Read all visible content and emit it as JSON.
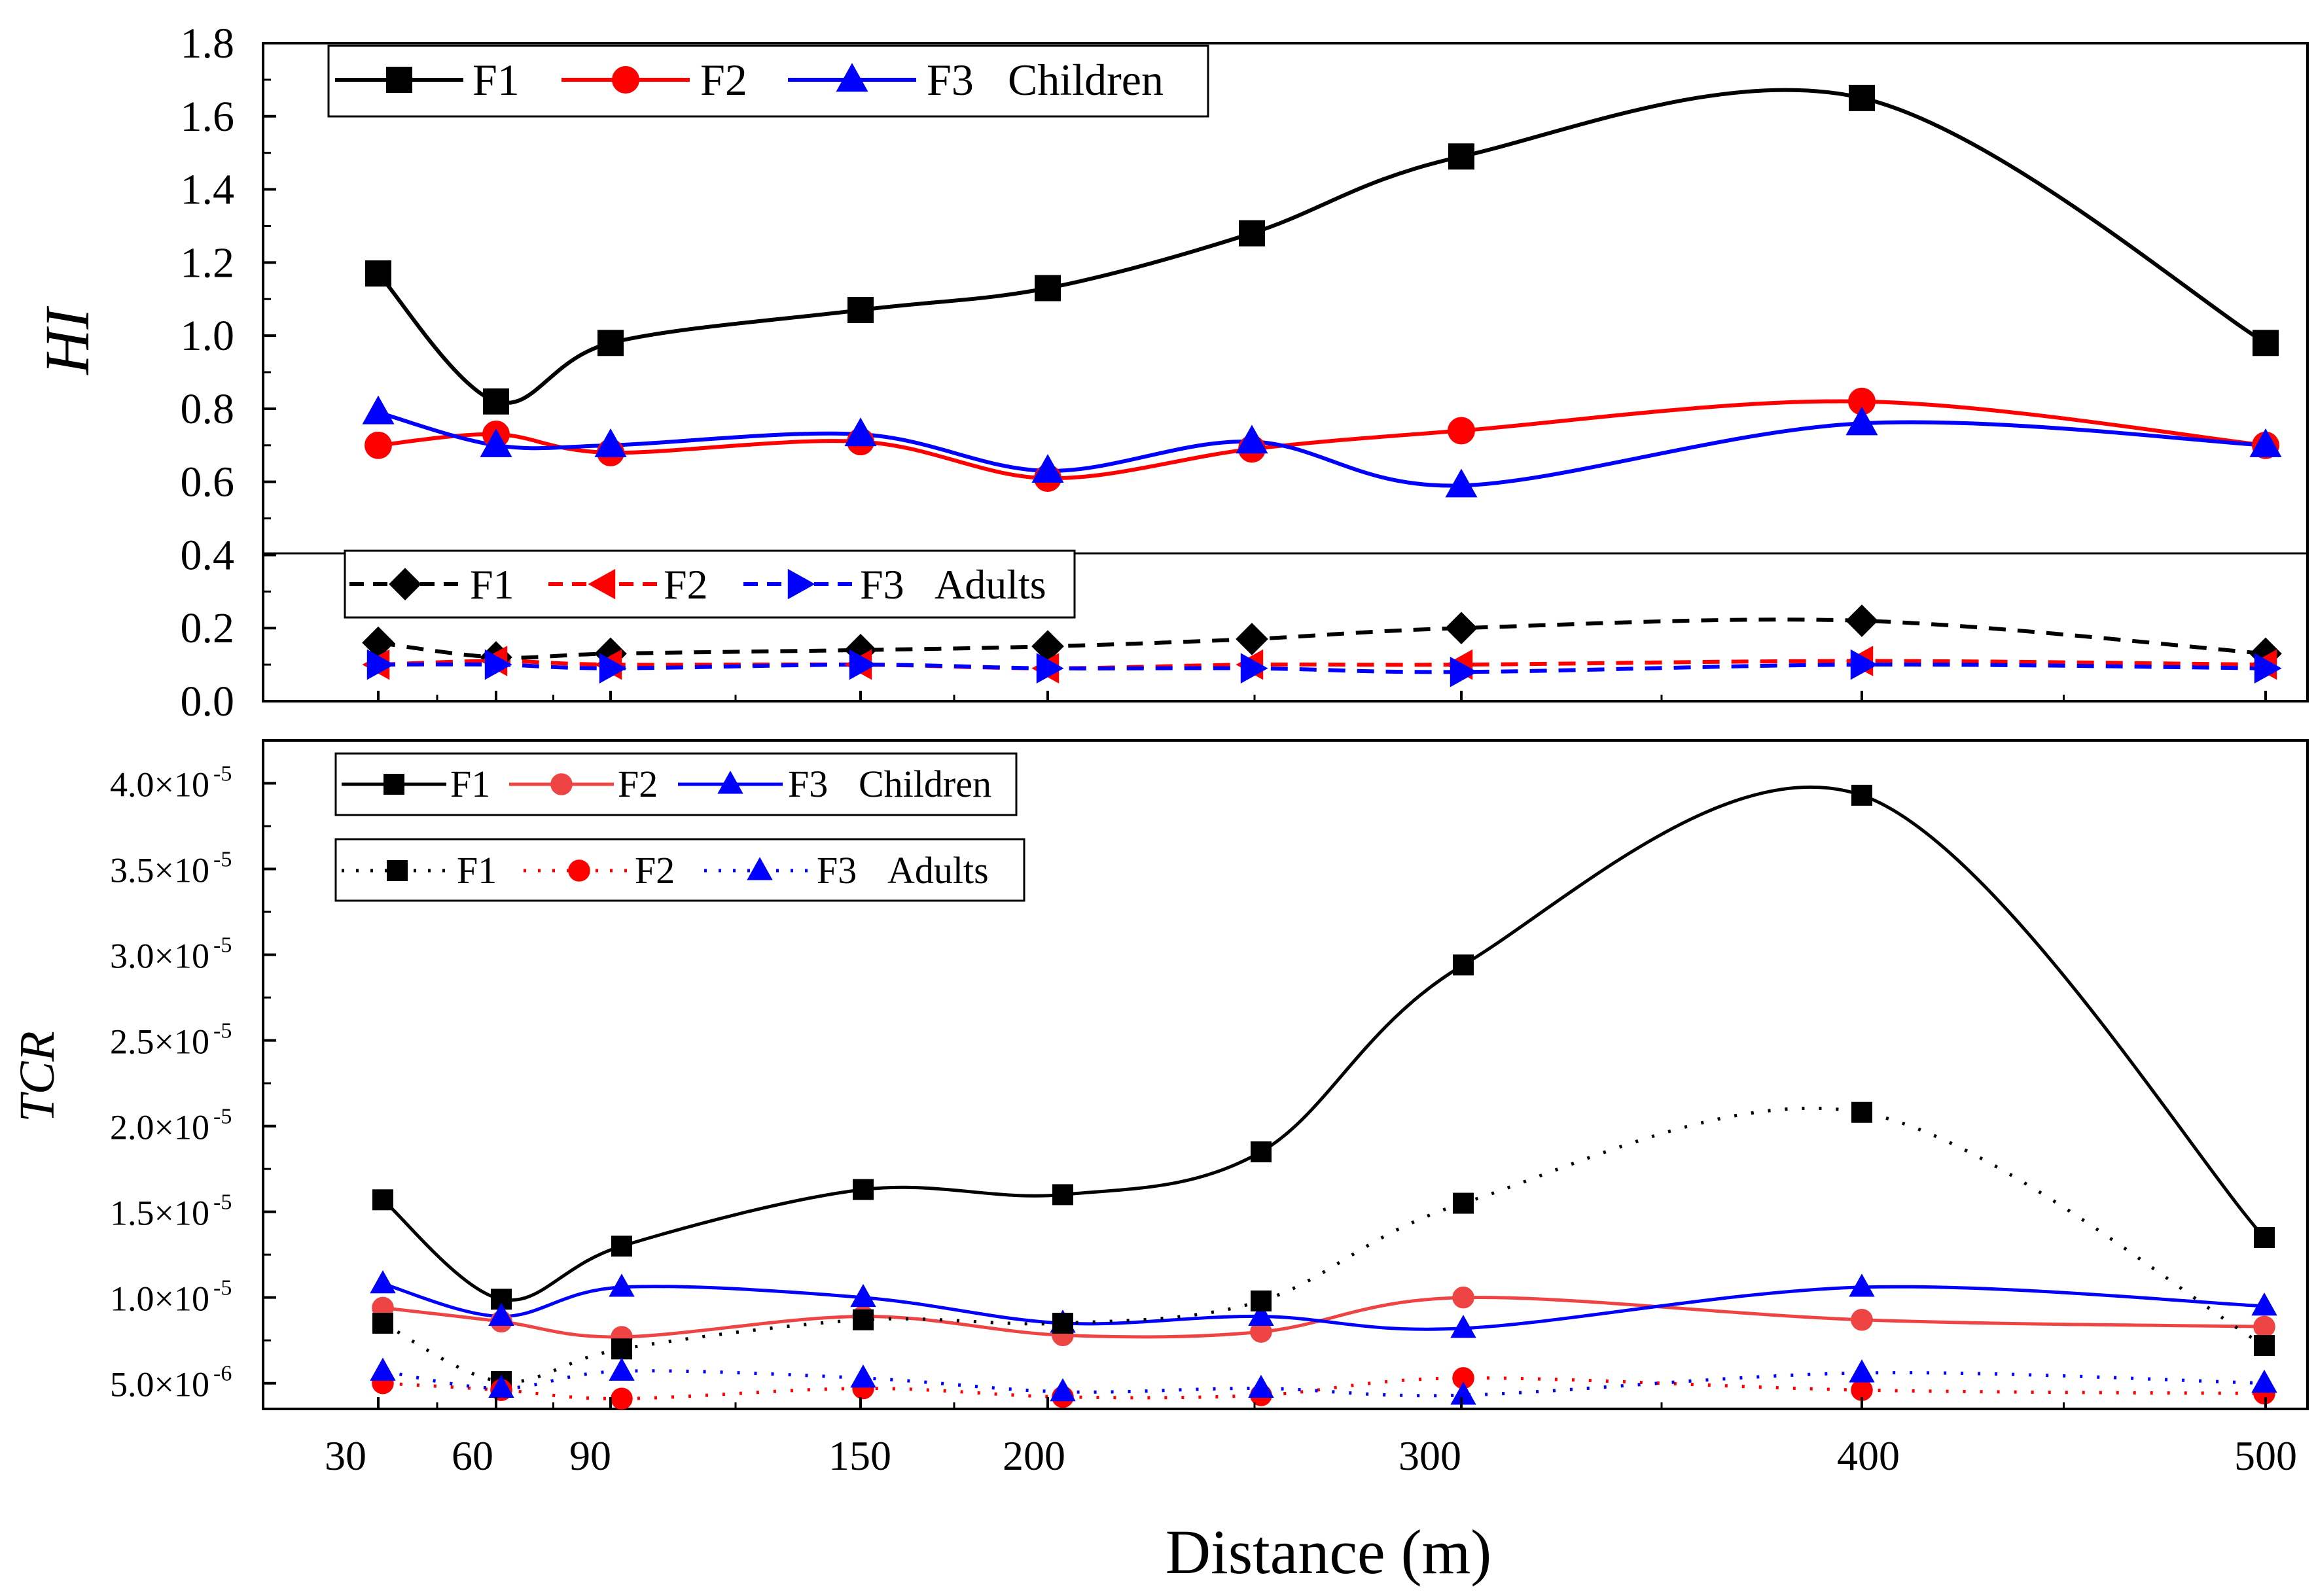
{
  "x_axis": {
    "label": "Distance (m)",
    "ticks": [
      "30",
      "60",
      "90",
      "150",
      "200",
      "300",
      "400",
      "500"
    ]
  },
  "chart_data": [
    {
      "type": "line",
      "ylabel": "HI",
      "ylim": [
        0.0,
        1.8
      ],
      "yticks": [
        "0.0",
        "0.2",
        "0.4",
        "0.6",
        "0.8",
        "1.0",
        "1.2",
        "1.4",
        "1.6",
        "1.8"
      ],
      "x": [
        30,
        60,
        90,
        150,
        200,
        250,
        300,
        400,
        500
      ],
      "legends": [
        {
          "entries": [
            "F1",
            "F2",
            "F3"
          ],
          "group": "Children",
          "position": "top-left"
        },
        {
          "entries": [
            "F1",
            "F2",
            "F3"
          ],
          "group": "Adults",
          "position": "middle-left"
        }
      ],
      "series": [
        {
          "name": "F1",
          "group": "Children",
          "color": "#000000",
          "marker": "square",
          "dash": "solid",
          "values": [
            1.17,
            0.82,
            0.98,
            1.07,
            1.13,
            1.28,
            1.49,
            1.65,
            0.98
          ]
        },
        {
          "name": "F2",
          "group": "Children",
          "color": "#ff0000",
          "marker": "circle",
          "dash": "solid",
          "values": [
            0.7,
            0.73,
            0.68,
            0.71,
            0.61,
            0.69,
            0.74,
            0.82,
            0.7
          ]
        },
        {
          "name": "F3",
          "group": "Children",
          "color": "#0000ff",
          "marker": "triangle-up",
          "dash": "solid",
          "values": [
            0.79,
            0.7,
            0.7,
            0.73,
            0.63,
            0.71,
            0.59,
            0.76,
            0.7
          ]
        },
        {
          "name": "F1",
          "group": "Adults",
          "color": "#000000",
          "marker": "diamond",
          "dash": "dash",
          "values": [
            0.16,
            0.12,
            0.13,
            0.14,
            0.15,
            0.17,
            0.2,
            0.22,
            0.13
          ]
        },
        {
          "name": "F2",
          "group": "Adults",
          "color": "#ff0000",
          "marker": "triangle-left",
          "dash": "dash",
          "values": [
            0.1,
            0.11,
            0.1,
            0.1,
            0.09,
            0.1,
            0.1,
            0.11,
            0.1
          ]
        },
        {
          "name": "F3",
          "group": "Adults",
          "color": "#0000ff",
          "marker": "triangle-right",
          "dash": "dash",
          "values": [
            0.1,
            0.1,
            0.09,
            0.1,
            0.09,
            0.09,
            0.08,
            0.1,
            0.09
          ]
        }
      ]
    },
    {
      "type": "line",
      "ylabel": "TCR",
      "ylim": [
        3.5e-06,
        4.25e-05
      ],
      "yticks": [
        {
          "mantissa": "5.0×10",
          "exp": "-6",
          "value": 5e-06
        },
        {
          "mantissa": "1.0×10",
          "exp": "-5",
          "value": 1e-05
        },
        {
          "mantissa": "1.5×10",
          "exp": "-5",
          "value": 1.5e-05
        },
        {
          "mantissa": "2.0×10",
          "exp": "-5",
          "value": 2e-05
        },
        {
          "mantissa": "2.5×10",
          "exp": "-5",
          "value": 2.5e-05
        },
        {
          "mantissa": "3.0×10",
          "exp": "-5",
          "value": 3e-05
        },
        {
          "mantissa": "3.5×10",
          "exp": "-5",
          "value": 3.5e-05
        },
        {
          "mantissa": "4.0×10",
          "exp": "-5",
          "value": 4e-05
        }
      ],
      "x": [
        30,
        60,
        90,
        150,
        200,
        250,
        300,
        400,
        500
      ],
      "legends": [
        {
          "entries": [
            "F1",
            "F2",
            "F3"
          ],
          "group": "Children",
          "position": "top-left"
        },
        {
          "entries": [
            "F1",
            "F2",
            "F3"
          ],
          "group": "Adults",
          "position": "top-left"
        }
      ],
      "series": [
        {
          "name": "F1",
          "group": "Children",
          "color": "#000000",
          "marker": "square",
          "dash": "solid",
          "values": [
            1.57e-05,
            9.9e-06,
            1.3e-05,
            1.63e-05,
            1.6e-05,
            1.85e-05,
            2.94e-05,
            3.93e-05,
            1.35e-05
          ]
        },
        {
          "name": "F2",
          "group": "Children",
          "color": "#ee4444",
          "marker": "circle",
          "dash": "solid",
          "values": [
            9.4e-06,
            8.6e-06,
            7.7e-06,
            8.9e-06,
            7.8e-06,
            8e-06,
            1e-05,
            8.7e-06,
            8.3e-06
          ]
        },
        {
          "name": "F3",
          "group": "Children",
          "color": "#0000ff",
          "marker": "triangle-up",
          "dash": "solid",
          "values": [
            1.08e-05,
            8.9e-06,
            1.06e-05,
            1e-05,
            8.5e-06,
            8.9e-06,
            8.2e-06,
            1.06e-05,
            9.5e-06
          ]
        },
        {
          "name": "F1",
          "group": "Adults",
          "color": "#000000",
          "marker": "square",
          "dash": "dot",
          "values": [
            8.5e-06,
            5.1e-06,
            7e-06,
            8.7e-06,
            8.5e-06,
            9.8e-06,
            1.55e-05,
            2.08e-05,
            7.2e-06
          ]
        },
        {
          "name": "F2",
          "group": "Adults",
          "color": "#ff0000",
          "marker": "circle",
          "dash": "dot",
          "values": [
            5e-06,
            4.6e-06,
            4.1e-06,
            4.7e-06,
            4.2e-06,
            4.3e-06,
            5.3e-06,
            4.6e-06,
            4.4e-06
          ]
        },
        {
          "name": "F3",
          "group": "Adults",
          "color": "#0000ff",
          "marker": "triangle-up",
          "dash": "dot",
          "values": [
            5.7e-06,
            4.7e-06,
            5.7e-06,
            5.3e-06,
            4.5e-06,
            4.7e-06,
            4.3e-06,
            5.6e-06,
            5e-06
          ]
        }
      ]
    }
  ]
}
